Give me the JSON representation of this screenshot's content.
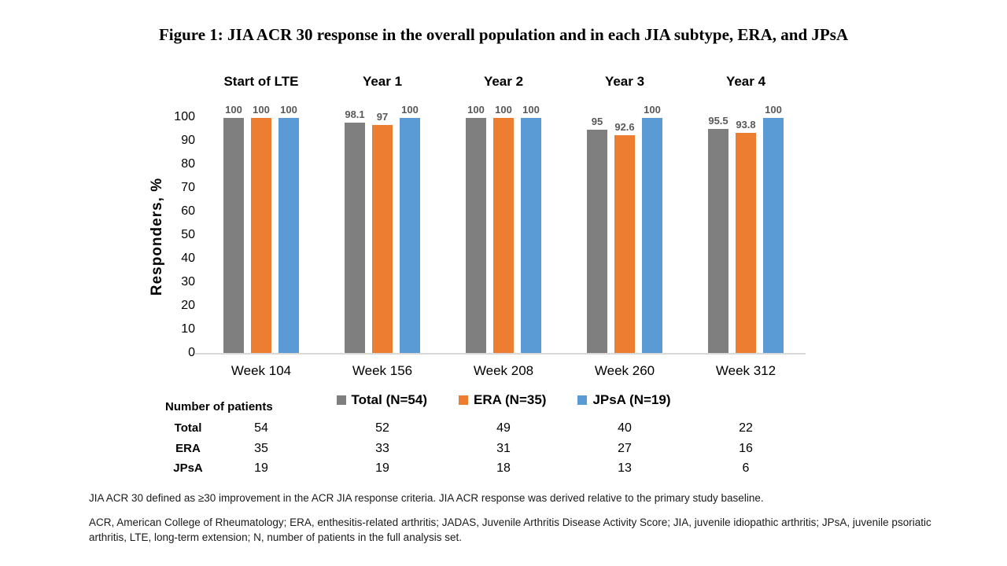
{
  "figure": {
    "title": "Figure 1: JIA ACR 30 response in the overall population and in each JIA subtype, ERA, and JPsA"
  },
  "chart_data": {
    "type": "bar",
    "title": "Figure 1: JIA ACR 30 response in the overall population and in each JIA subtype, ERA, and JPsA",
    "ylabel": "Responders, %",
    "xlabel": "",
    "ylim": [
      0,
      100
    ],
    "ytick_step": 10,
    "yticks": [
      0,
      10,
      20,
      30,
      40,
      50,
      60,
      70,
      80,
      90,
      100
    ],
    "grid": false,
    "legend_position": "bottom",
    "group_headers": [
      "Start of LTE",
      "Year 1",
      "Year 2",
      "Year 3",
      "Year 4"
    ],
    "categories": [
      "Week 104",
      "Week 156",
      "Week 208",
      "Week 260",
      "Week 312"
    ],
    "series": [
      {
        "name": "Total (N=54)",
        "color": "#7F7F7F",
        "values": [
          100,
          98.1,
          100,
          95,
          95.5
        ]
      },
      {
        "name": "ERA (N=35)",
        "color": "#ED7D31",
        "values": [
          100,
          97,
          100,
          92.6,
          93.8
        ]
      },
      {
        "name": "JPsA (N=19)",
        "color": "#5B9BD5",
        "values": [
          100,
          100,
          100,
          100,
          100
        ]
      }
    ]
  },
  "patients_table": {
    "header": "Number of patients",
    "rows": [
      {
        "label": "Total",
        "values": [
          "54",
          "52",
          "49",
          "40",
          "22"
        ]
      },
      {
        "label": "ERA",
        "values": [
          "35",
          "33",
          "31",
          "27",
          "16"
        ]
      },
      {
        "label": "JPsA",
        "values": [
          "19",
          "19",
          "18",
          "13",
          "6"
        ]
      }
    ]
  },
  "footnotes": [
    "JIA ACR 30 defined as ≥30 improvement in the ACR JIA response criteria. JIA ACR response was derived relative to the primary study baseline.",
    "ACR, American College of Rheumatology; ERA, enthesitis-related arthritis; JADAS, Juvenile Arthritis Disease Activity Score; JIA, juvenile idiopathic arthritis; JPsA, juvenile psoriatic arthritis, LTE, long-term extension; N, number of patients in the full analysis set."
  ],
  "colors": {
    "value_label": "#595959",
    "axis_line": "#D9D9D9",
    "total": "#7F7F7F",
    "era": "#ED7D31",
    "jpsa": "#5B9BD5"
  }
}
